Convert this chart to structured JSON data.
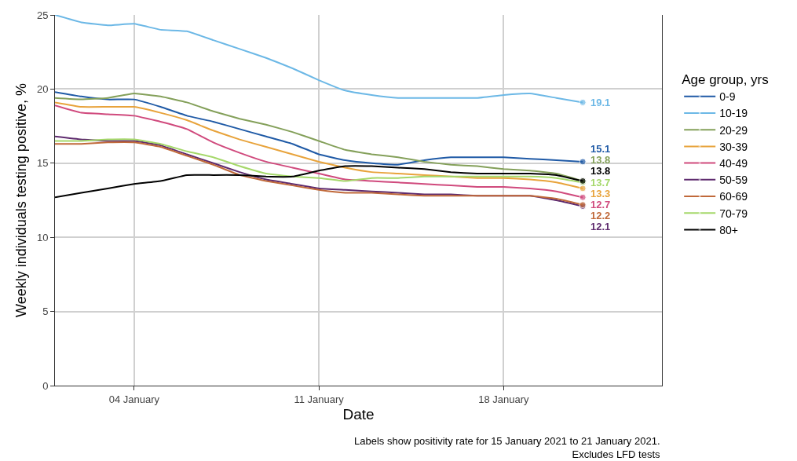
{
  "chart_data": {
    "type": "line",
    "xlabel": "Date",
    "ylabel": "Weekly individuals testing positive, %",
    "legend_title": "Age group, yrs",
    "x": [
      "2021-01-01",
      "2021-01-02",
      "2021-01-03",
      "2021-01-04",
      "2021-01-05",
      "2021-01-06",
      "2021-01-07",
      "2021-01-08",
      "2021-01-09",
      "2021-01-10",
      "2021-01-11",
      "2021-01-12",
      "2021-01-13",
      "2021-01-14",
      "2021-01-15",
      "2021-01-16",
      "2021-01-17",
      "2021-01-18",
      "2021-01-19",
      "2021-01-20",
      "2021-01-21"
    ],
    "series": [
      {
        "name": "0-9",
        "color": "#1f5aa6",
        "values": [
          19.8,
          19.5,
          19.3,
          19.3,
          18.8,
          18.2,
          17.8,
          17.3,
          16.8,
          16.3,
          15.6,
          15.2,
          15.0,
          14.9,
          15.2,
          15.4,
          15.4,
          15.4,
          15.3,
          15.2,
          15.1
        ],
        "value_labels": [
          null,
          null,
          null,
          null,
          null,
          null,
          null,
          null,
          null,
          null,
          null,
          null,
          null,
          null,
          null,
          null,
          null,
          null,
          null,
          null,
          "15.1"
        ]
      },
      {
        "name": "10-19",
        "color": "#6cb8e6",
        "values": [
          25.0,
          24.5,
          24.3,
          24.4,
          24.0,
          23.9,
          23.3,
          22.7,
          22.1,
          21.4,
          20.6,
          19.9,
          19.6,
          19.4,
          19.4,
          19.4,
          19.4,
          19.6,
          19.7,
          19.4,
          19.1
        ],
        "value_labels": [
          null,
          null,
          null,
          null,
          null,
          null,
          null,
          null,
          null,
          null,
          null,
          null,
          null,
          null,
          null,
          null,
          null,
          null,
          null,
          null,
          "19.1"
        ]
      },
      {
        "name": "20-29",
        "color": "#84a05a",
        "values": [
          19.4,
          19.3,
          19.4,
          19.7,
          19.5,
          19.1,
          18.5,
          18.0,
          17.6,
          17.1,
          16.5,
          15.9,
          15.6,
          15.4,
          15.1,
          14.9,
          14.8,
          14.6,
          14.5,
          14.3,
          13.8
        ],
        "value_labels": [
          null,
          null,
          null,
          null,
          null,
          null,
          null,
          null,
          null,
          null,
          null,
          null,
          null,
          null,
          null,
          null,
          null,
          null,
          null,
          null,
          "13.8"
        ]
      },
      {
        "name": "30-39",
        "color": "#e8a33b",
        "values": [
          19.1,
          18.8,
          18.8,
          18.8,
          18.4,
          17.9,
          17.2,
          16.6,
          16.1,
          15.6,
          15.1,
          14.7,
          14.4,
          14.3,
          14.2,
          14.1,
          14.0,
          14.0,
          13.9,
          13.7,
          13.3
        ],
        "value_labels": [
          null,
          null,
          null,
          null,
          null,
          null,
          null,
          null,
          null,
          null,
          null,
          null,
          null,
          null,
          null,
          null,
          null,
          null,
          null,
          null,
          "13.3"
        ]
      },
      {
        "name": "40-49",
        "color": "#d04a7d",
        "values": [
          18.9,
          18.4,
          18.3,
          18.2,
          17.8,
          17.3,
          16.4,
          15.7,
          15.1,
          14.7,
          14.3,
          13.9,
          13.8,
          13.7,
          13.6,
          13.5,
          13.4,
          13.4,
          13.3,
          13.1,
          12.7
        ],
        "value_labels": [
          null,
          null,
          null,
          null,
          null,
          null,
          null,
          null,
          null,
          null,
          null,
          null,
          null,
          null,
          null,
          null,
          null,
          null,
          null,
          null,
          "12.7"
        ]
      },
      {
        "name": "50-59",
        "color": "#5e2a6e",
        "values": [
          16.8,
          16.6,
          16.5,
          16.5,
          16.2,
          15.6,
          15.0,
          14.4,
          13.9,
          13.6,
          13.3,
          13.2,
          13.1,
          13.0,
          12.9,
          12.9,
          12.8,
          12.8,
          12.8,
          12.5,
          12.1
        ],
        "value_labels": [
          null,
          null,
          null,
          null,
          null,
          null,
          null,
          null,
          null,
          null,
          null,
          null,
          null,
          null,
          null,
          null,
          null,
          null,
          null,
          null,
          "12.1"
        ]
      },
      {
        "name": "60-69",
        "color": "#c0693a",
        "values": [
          16.3,
          16.3,
          16.4,
          16.4,
          16.1,
          15.5,
          14.9,
          14.2,
          13.8,
          13.5,
          13.2,
          13.0,
          13.0,
          12.9,
          12.8,
          12.8,
          12.8,
          12.8,
          12.8,
          12.6,
          12.2
        ],
        "value_labels": [
          null,
          null,
          null,
          null,
          null,
          null,
          null,
          null,
          null,
          null,
          null,
          null,
          null,
          null,
          null,
          null,
          null,
          null,
          null,
          null,
          "12.2"
        ]
      },
      {
        "name": "70-79",
        "color": "#a5d86a",
        "values": [
          16.5,
          16.5,
          16.6,
          16.6,
          16.3,
          15.8,
          15.4,
          14.8,
          14.3,
          14.1,
          14.0,
          13.8,
          14.0,
          14.0,
          14.1,
          14.1,
          14.1,
          14.1,
          14.1,
          14.0,
          13.7
        ],
        "value_labels": [
          null,
          null,
          null,
          null,
          null,
          null,
          null,
          null,
          null,
          null,
          null,
          null,
          null,
          null,
          null,
          null,
          null,
          null,
          null,
          null,
          "13.7"
        ]
      },
      {
        "name": "80+",
        "color": "#000000",
        "values": [
          12.7,
          13.0,
          13.3,
          13.6,
          13.8,
          14.2,
          14.2,
          14.2,
          14.1,
          14.1,
          14.5,
          14.8,
          14.8,
          14.7,
          14.6,
          14.4,
          14.3,
          14.3,
          14.3,
          14.2,
          13.8
        ],
        "value_labels": [
          null,
          null,
          null,
          null,
          null,
          null,
          null,
          null,
          null,
          null,
          null,
          null,
          null,
          null,
          null,
          null,
          null,
          null,
          null,
          null,
          "13.8"
        ]
      }
    ],
    "xlim": [
      "2021-01-01",
      "2021-01-24"
    ],
    "xticks": [
      {
        "value": "2021-01-04",
        "label": "04 January"
      },
      {
        "value": "2021-01-11",
        "label": "11 January"
      },
      {
        "value": "2021-01-18",
        "label": "18 January"
      }
    ],
    "ylim": [
      0,
      25
    ],
    "yticks": [
      0,
      5,
      10,
      15,
      20,
      25
    ],
    "grid": true,
    "legend": "right",
    "line_style": "solid",
    "annotations": [
      "Labels show positivity rate for 15 January 2021 to 21 January 2021.\nExcludes LFD tests"
    ]
  }
}
